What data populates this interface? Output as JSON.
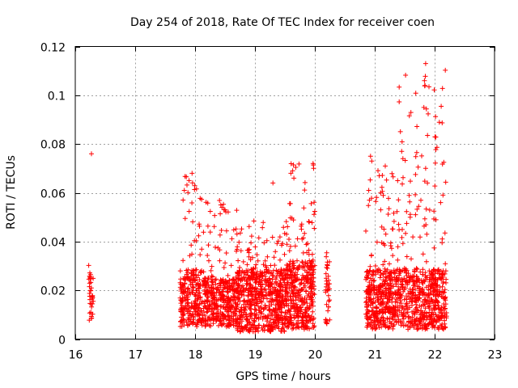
{
  "chart_data": {
    "type": "scatter",
    "title": "Day 254 of 2018, Rate Of TEC Index for receiver coen",
    "xlabel": "GPS time / hours",
    "ylabel": "ROTI / TECUs",
    "xlim": [
      16,
      23
    ],
    "ylim": [
      0,
      0.12
    ],
    "xticks": [
      "16",
      "17",
      "18",
      "19",
      "20",
      "21",
      "22",
      "23"
    ],
    "yticks": [
      "0",
      "0.02",
      "0.04",
      "0.06",
      "0.08",
      "0.1",
      "0.12"
    ],
    "grid": true,
    "marker": "+",
    "color": "#ff0000",
    "clusters": [
      {
        "x": [
          16.22,
          16.3
        ],
        "y_min": 0.007,
        "y_typ": 0.02,
        "y_max": 0.036,
        "count": 35,
        "extra": [
          [
            16.27,
            0.076
          ]
        ]
      },
      {
        "x": [
          17.75,
          18.15
        ],
        "y_min": 0.005,
        "y_typ": 0.018,
        "y_max": 0.068,
        "count": 260,
        "extra": [
          [
            17.95,
            0.068
          ],
          [
            17.9,
            0.065
          ],
          [
            17.82,
            0.061
          ],
          [
            17.8,
            0.057
          ]
        ]
      },
      {
        "x": [
          18.15,
          18.7
        ],
        "y_min": 0.005,
        "y_typ": 0.016,
        "y_max": 0.057,
        "count": 380,
        "extra": [
          [
            18.45,
            0.054
          ],
          [
            18.5,
            0.053
          ]
        ]
      },
      {
        "x": [
          18.7,
          19.5
        ],
        "y_min": 0.003,
        "y_typ": 0.018,
        "y_max": 0.049,
        "count": 620,
        "extra": []
      },
      {
        "x": [
          19.5,
          20.0
        ],
        "y_min": 0.004,
        "y_typ": 0.02,
        "y_max": 0.072,
        "count": 420,
        "extra": [
          [
            19.6,
            0.068
          ],
          [
            19.65,
            0.066
          ],
          [
            19.97,
            0.072
          ],
          [
            19.98,
            0.07
          ],
          [
            19.3,
            0.064
          ]
        ]
      },
      {
        "x": [
          20.18,
          20.25
        ],
        "y_min": 0.006,
        "y_typ": 0.02,
        "y_max": 0.04,
        "count": 40,
        "extra": []
      },
      {
        "x": [
          20.85,
          21.4
        ],
        "y_min": 0.004,
        "y_typ": 0.018,
        "y_max": 0.075,
        "count": 420,
        "extra": [
          [
            20.93,
            0.075
          ],
          [
            20.95,
            0.073
          ],
          [
            20.9,
            0.061
          ],
          [
            21.1,
            0.053
          ]
        ]
      },
      {
        "x": [
          21.4,
          22.2
        ],
        "y_min": 0.004,
        "y_typ": 0.018,
        "y_max": 0.113,
        "count": 560,
        "extra": [
          [
            21.85,
            0.113
          ],
          [
            21.83,
            0.106
          ],
          [
            21.84,
            0.104
          ],
          [
            21.82,
            0.095
          ],
          [
            21.45,
            0.077
          ],
          [
            21.47,
            0.074
          ],
          [
            21.85,
            0.07
          ],
          [
            21.88,
            0.064
          ],
          [
            22.1,
            0.056
          ]
        ]
      }
    ]
  }
}
